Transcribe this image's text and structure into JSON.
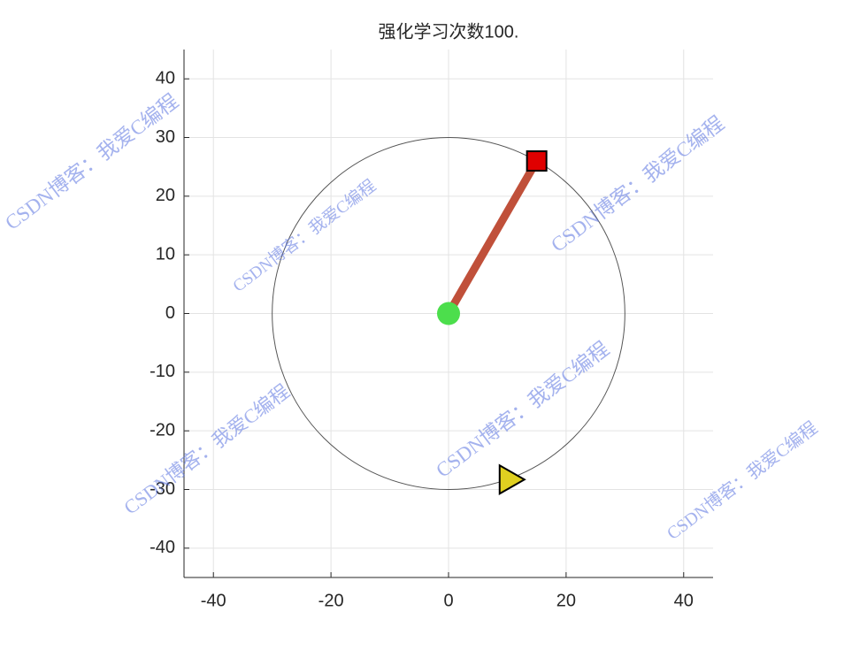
{
  "chart_data": {
    "type": "scatter",
    "title": "强化学习次数100.",
    "xlim": [
      -45,
      45
    ],
    "ylim": [
      -45,
      45
    ],
    "xticks": [
      -40,
      -20,
      0,
      20,
      40
    ],
    "yticks": [
      -40,
      -30,
      -20,
      -10,
      0,
      10,
      20,
      30,
      40
    ],
    "grid": true,
    "circle": {
      "x": 0,
      "y": 0,
      "radius": 30,
      "color": "#555555"
    },
    "rod": {
      "x": [
        0,
        15
      ],
      "y": [
        0,
        26
      ],
      "color": "#c0503a"
    },
    "points": [
      {
        "x": 0,
        "y": 0,
        "marker": "circle",
        "color": "#4cde4c"
      },
      {
        "x": 15,
        "y": 26,
        "marker": "square",
        "color": "#e00000"
      },
      {
        "x": 10.5,
        "y": -28.3,
        "marker": "triangle",
        "color": "#e0d020"
      }
    ],
    "watermark": "CSDN博客：我爱C编程"
  }
}
